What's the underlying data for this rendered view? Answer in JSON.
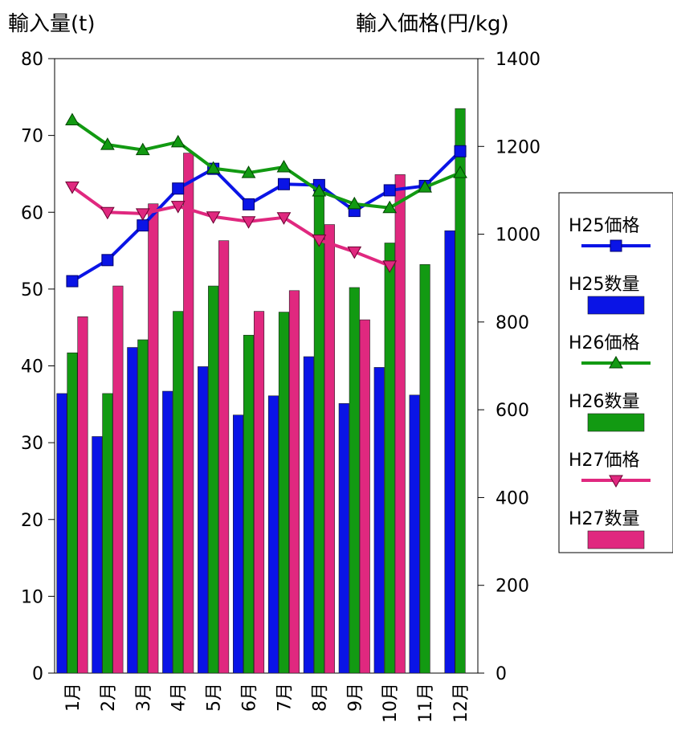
{
  "chart_data": {
    "type": "bar",
    "left_axis_title": "輸入量(t)",
    "right_axis_title": "輸入価格(円/kg)",
    "categories": [
      "1月",
      "2月",
      "3月",
      "4月",
      "5月",
      "6月",
      "7月",
      "8月",
      "9月",
      "10月",
      "11月",
      "12月"
    ],
    "y_left": {
      "min": 0,
      "max": 80,
      "ticks": [
        "0",
        "10",
        "20",
        "30",
        "40",
        "50",
        "60",
        "70",
        "80"
      ]
    },
    "y_right": {
      "min": 0,
      "max": 1400,
      "ticks": [
        "0",
        "200",
        "400",
        "600",
        "800",
        "1000",
        "1200",
        "1400"
      ]
    },
    "bar_series": [
      {
        "name": "H25数量",
        "color": "#0a14e6",
        "values": [
          36.4,
          30.8,
          42.4,
          36.7,
          39.9,
          33.6,
          36.1,
          41.2,
          35.1,
          39.8,
          36.2,
          57.6
        ]
      },
      {
        "name": "H26数量",
        "color": "#129a12",
        "values": [
          41.7,
          36.4,
          43.4,
          47.1,
          50.4,
          44.0,
          47.0,
          63.0,
          50.2,
          56.0,
          53.2,
          73.5
        ]
      },
      {
        "name": "H27数量",
        "color": "#e0287f",
        "values": [
          46.4,
          50.4,
          61.1,
          67.7,
          56.3,
          47.1,
          49.8,
          58.4,
          46.0,
          64.9,
          null,
          null
        ]
      }
    ],
    "line_series": [
      {
        "name": "H25価格",
        "color": "#0a14e6",
        "marker": "square",
        "values": [
          893,
          941,
          1020,
          1104,
          1149,
          1068,
          1114,
          1112,
          1053,
          1100,
          1110,
          1189
        ]
      },
      {
        "name": "H26価格",
        "color": "#129a12",
        "marker": "triangle-up",
        "values": [
          1260,
          1204,
          1192,
          1210,
          1150,
          1140,
          1153,
          1098,
          1069,
          1060,
          1107,
          1140
        ]
      },
      {
        "name": "H27価格",
        "color": "#e0287f",
        "marker": "triangle-down",
        "values": [
          1108,
          1050,
          1047,
          1064,
          1040,
          1029,
          1038,
          987,
          960,
          928,
          null,
          null
        ]
      }
    ],
    "legend": [
      "H25価格",
      "H25数量",
      "H26価格",
      "H26数量",
      "H27価格",
      "H27数量"
    ],
    "legend_position": "right"
  }
}
